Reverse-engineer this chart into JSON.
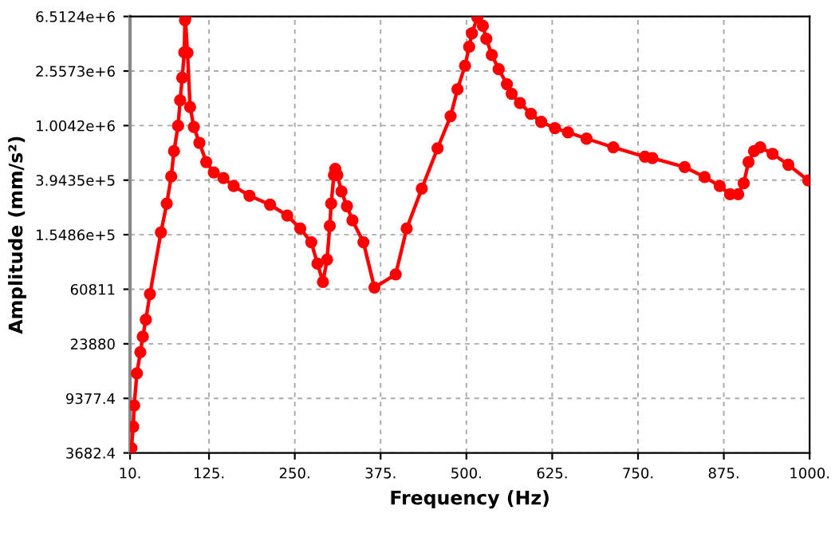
{
  "chart_data": {
    "type": "line",
    "xlabel": "Frequency (Hz)",
    "ylabel": "Amplitude (mm/s²)",
    "log": "y",
    "grid": true,
    "marker": "circle",
    "line_style": "solid",
    "xlim": [
      10,
      1000
    ],
    "ylim": [
      3682.4,
      6512400
    ],
    "xticks": [
      {
        "value": 10,
        "label": "10."
      },
      {
        "value": 125,
        "label": "125."
      },
      {
        "value": 250,
        "label": "250."
      },
      {
        "value": 375,
        "label": "375."
      },
      {
        "value": 500,
        "label": "500."
      },
      {
        "value": 625,
        "label": "625."
      },
      {
        "value": 750,
        "label": "750."
      },
      {
        "value": 875,
        "label": "875."
      },
      {
        "value": 1000,
        "label": "1000."
      }
    ],
    "yticks": [
      3682.4,
      9377.4,
      23880,
      60811,
      {
        "value": 154860,
        "label": "1.5486e+5"
      },
      {
        "value": 394350,
        "label": "3.9435e+5"
      },
      {
        "value": 1004200,
        "label": "1.0042e+6"
      },
      {
        "value": 2557300,
        "label": "2.5573e+6"
      },
      {
        "value": 6512400,
        "label": "6.5124e+6"
      }
    ],
    "series": [
      {
        "color": "#ff0000",
        "x": [
          12,
          14.6,
          16,
          20,
          25,
          28.6,
          33,
          39,
          55,
          63.5,
          70,
          74,
          80,
          83,
          86,
          89,
          90,
          90.5,
          93.7,
          97.5,
          103,
          111,
          121,
          132,
          146,
          161,
          184,
          214,
          239,
          258,
          274,
          283,
          291,
          297,
          301,
          303,
          307,
          309,
          312,
          318,
          326,
          334,
          350,
          366,
          397,
          413,
          435,
          458,
          477,
          487,
          498,
          504,
          508,
          516,
          524,
          529,
          537,
          547,
          559,
          566,
          578,
          594,
          609,
          629,
          648,
          675,
          714,
          760,
          771,
          818,
          847,
          869,
          884,
          896,
          904,
          911,
          919,
          928,
          946,
          969,
          998
        ],
        "values": [
          4000,
          5770,
          8300,
          14400,
          20700,
          27000,
          36100,
          56000,
          161000,
          264000,
          420000,
          648000,
          1000000,
          1550000,
          2280000,
          3520000,
          6100000,
          6400000,
          3500000,
          1380000,
          980000,
          747000,
          538000,
          450000,
          409000,
          357000,
          302000,
          259000,
          215000,
          172000,
          136000,
          94300,
          68800,
          101000,
          180000,
          264000,
          430000,
          479000,
          430000,
          325000,
          252000,
          198000,
          136000,
          62600,
          78500,
          172000,
          341000,
          681000,
          1180000,
          1870000,
          2800000,
          3870000,
          4880000,
          6400000,
          5540000,
          4440000,
          3370000,
          2640000,
          2040000,
          1730000,
          1480000,
          1230000,
          1070000,
          961000,
          893000,
          803000,
          692000,
          589000,
          575000,
          493000,
          416000,
          357000,
          310000,
          310000,
          374000,
          538000,
          648000,
          692000,
          619000,
          513000,
          392000
        ]
      }
    ]
  }
}
